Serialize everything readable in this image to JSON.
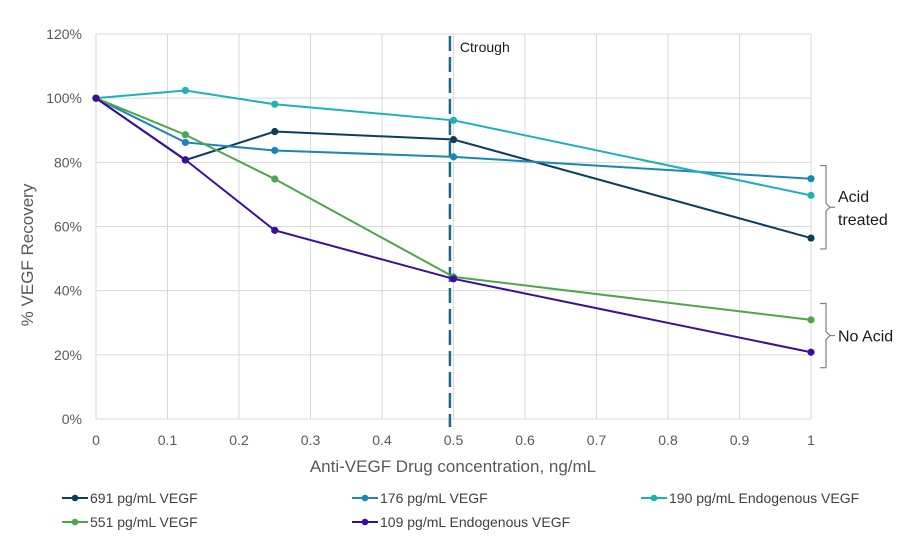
{
  "chart_data": {
    "type": "line",
    "title": "",
    "xlabel": "Anti-VEGF Drug concentration, ng/mL",
    "ylabel": "% VEGF Recovery",
    "xlim": [
      0,
      1
    ],
    "ylim": [
      0,
      120
    ],
    "x_ticks": [
      0,
      0.1,
      0.2,
      0.3,
      0.4,
      0.5,
      0.6,
      0.7,
      0.8,
      0.9,
      1
    ],
    "x_tick_labels": [
      "0",
      "0.1",
      "0.2",
      "0.3",
      "0.4",
      "0.5",
      "0.6",
      "0.7",
      "0.8",
      "0.9",
      "1"
    ],
    "y_ticks": [
      0,
      20,
      40,
      60,
      80,
      100,
      120
    ],
    "y_tick_labels": [
      "0%",
      "20%",
      "40%",
      "60%",
      "80%",
      "100%",
      "120%"
    ],
    "grid": true,
    "legend_position": "bottom",
    "x": [
      0,
      0.125,
      0.25,
      0.5,
      1
    ],
    "series": [
      {
        "name": "691 pg/mL VEGF",
        "color": "#0d3d5c",
        "values": [
          100,
          80.7,
          89.6,
          87.1,
          56.4
        ]
      },
      {
        "name": "176 pg/mL VEGF",
        "color": "#1a86b8",
        "values": [
          100,
          86.2,
          83.7,
          81.7,
          74.9
        ]
      },
      {
        "name": "190 pg/mL Endogenous VEGF",
        "color": "#1fb0b8",
        "values": [
          100,
          102.4,
          98.1,
          93.1,
          69.7
        ]
      },
      {
        "name": "551 pg/mL VEGF",
        "color": "#4ea64a",
        "values": [
          100,
          88.6,
          74.8,
          44.3,
          30.9
        ]
      },
      {
        "name": "109 pg/mL Endogenous VEGF",
        "color": "#3b0f9a",
        "values": [
          100,
          80.8,
          58.8,
          43.7,
          20.8
        ]
      }
    ],
    "reference_line": {
      "label": "Ctrough",
      "x": 0.495,
      "color": "#1a6a8a",
      "style": "dashed"
    },
    "annotations": [
      {
        "label_lines": [
          "Acid",
          "treated"
        ],
        "bracket_range": [
          53,
          79
        ]
      },
      {
        "label_lines": [
          "No Acid"
        ],
        "bracket_range": [
          16,
          36
        ]
      }
    ]
  }
}
